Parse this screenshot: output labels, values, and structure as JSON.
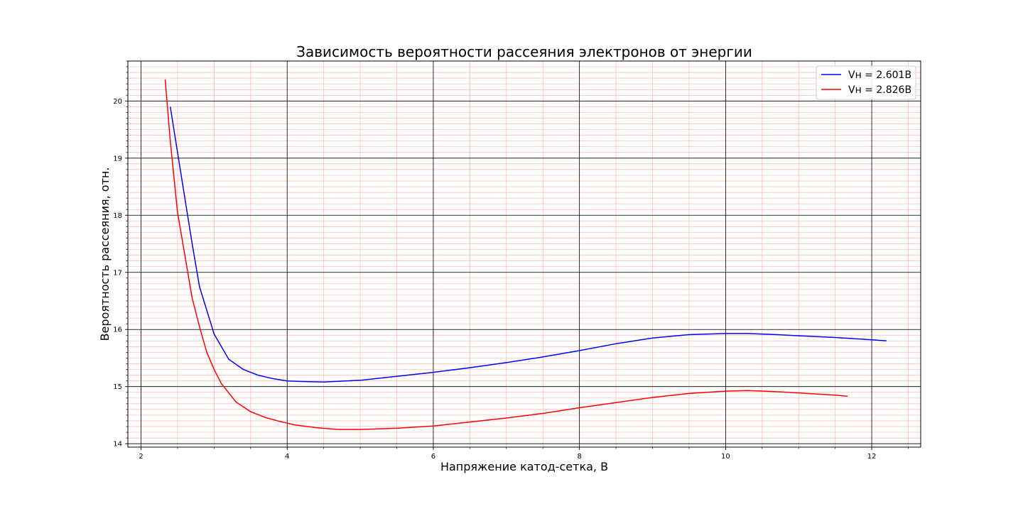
{
  "chart_data": {
    "type": "line",
    "title": "Зависимость вероятности рассеяния электронов от энергии",
    "xlabel": "Напряжение катод-сетка, В",
    "ylabel": "Вероятность рассеяния, отн.",
    "xlim": [
      1.82,
      12.67
    ],
    "ylim": [
      13.94,
      20.7
    ],
    "x_major_ticks": [
      2,
      4,
      6,
      8,
      10,
      12
    ],
    "y_major_ticks": [
      14,
      15,
      16,
      17,
      18,
      19,
      20
    ],
    "x_minor_step": 0.5,
    "y_minor_step": 0.1,
    "grid": {
      "major": true,
      "minor": true,
      "major_color": "#000000",
      "minor_color": "#ffb3b3"
    },
    "legend_position": "top-right",
    "series": [
      {
        "name": "Vн = 2.601В",
        "color": "#0000ff",
        "x": [
          2.4,
          2.5,
          2.6,
          2.7,
          2.8,
          3.0,
          3.2,
          3.4,
          3.6,
          3.8,
          4.0,
          4.2,
          4.5,
          5.0,
          5.5,
          6.0,
          6.5,
          7.0,
          7.5,
          8.0,
          8.5,
          9.0,
          9.5,
          10.0,
          10.3,
          10.7,
          11.0,
          11.5,
          12.0,
          12.2
        ],
        "y": [
          19.9,
          19.1,
          18.3,
          17.5,
          16.75,
          15.92,
          15.48,
          15.3,
          15.2,
          15.14,
          15.1,
          15.09,
          15.08,
          15.11,
          15.18,
          15.25,
          15.33,
          15.42,
          15.52,
          15.63,
          15.75,
          15.85,
          15.91,
          15.93,
          15.93,
          15.91,
          15.89,
          15.86,
          15.82,
          15.8
        ]
      },
      {
        "name": "Vн = 2.826В",
        "color": "#ff0000",
        "x": [
          2.33,
          2.4,
          2.5,
          2.6,
          2.7,
          2.8,
          2.9,
          3.0,
          3.1,
          3.3,
          3.5,
          3.7,
          3.9,
          4.1,
          4.4,
          4.7,
          5.0,
          5.5,
          6.0,
          6.5,
          7.0,
          7.5,
          8.0,
          8.5,
          9.0,
          9.5,
          10.0,
          10.3,
          10.7,
          11.0,
          11.5,
          11.67
        ],
        "y": [
          20.38,
          19.3,
          18.05,
          17.3,
          16.55,
          16.05,
          15.6,
          15.3,
          15.05,
          14.73,
          14.56,
          14.46,
          14.39,
          14.33,
          14.28,
          14.25,
          14.25,
          14.27,
          14.31,
          14.38,
          14.45,
          14.53,
          14.63,
          14.72,
          14.81,
          14.88,
          14.92,
          14.93,
          14.91,
          14.89,
          14.85,
          14.83
        ]
      }
    ]
  }
}
